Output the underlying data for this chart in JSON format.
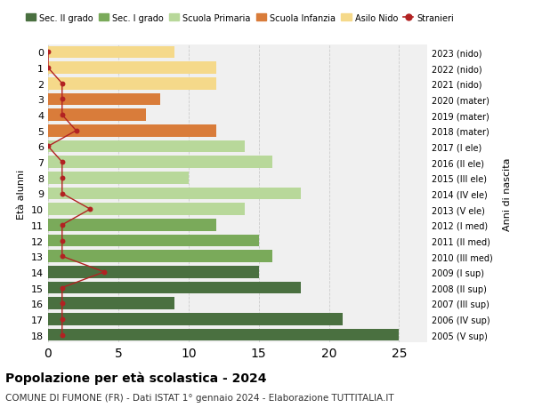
{
  "ages": [
    18,
    17,
    16,
    15,
    14,
    13,
    12,
    11,
    10,
    9,
    8,
    7,
    6,
    5,
    4,
    3,
    2,
    1,
    0
  ],
  "right_labels": [
    "2005 (V sup)",
    "2006 (IV sup)",
    "2007 (III sup)",
    "2008 (II sup)",
    "2009 (I sup)",
    "2010 (III med)",
    "2011 (II med)",
    "2012 (I med)",
    "2013 (V ele)",
    "2014 (IV ele)",
    "2015 (III ele)",
    "2016 (II ele)",
    "2017 (I ele)",
    "2018 (mater)",
    "2019 (mater)",
    "2020 (mater)",
    "2021 (nido)",
    "2022 (nido)",
    "2023 (nido)"
  ],
  "bar_values": [
    25,
    21,
    9,
    18,
    15,
    16,
    15,
    12,
    14,
    18,
    10,
    16,
    14,
    12,
    7,
    8,
    12,
    12,
    9
  ],
  "bar_colors": [
    "#4a7040",
    "#4a7040",
    "#4a7040",
    "#4a7040",
    "#4a7040",
    "#7aaa5a",
    "#7aaa5a",
    "#7aaa5a",
    "#b8d89a",
    "#b8d89a",
    "#b8d89a",
    "#b8d89a",
    "#b8d89a",
    "#d97c3a",
    "#d97c3a",
    "#d97c3a",
    "#f5d98a",
    "#f5d98a",
    "#f5d98a"
  ],
  "stranieri_x": [
    1,
    1,
    1,
    1,
    4,
    1,
    1,
    1,
    3,
    1,
    1,
    1,
    0,
    2,
    1,
    1,
    1,
    0,
    0
  ],
  "stranieri_color": "#b22222",
  "xlim": [
    0,
    27
  ],
  "xticks": [
    0,
    5,
    10,
    15,
    20,
    25
  ],
  "ylabel": "Età alunni",
  "right_ylabel": "Anni di nascita",
  "title": "Popolazione per età scolastica - 2024",
  "subtitle": "COMUNE DI FUMONE (FR) - Dati ISTAT 1° gennaio 2024 - Elaborazione TUTTITALIA.IT",
  "legend_items": [
    {
      "label": "Sec. II grado",
      "color": "#4a7040"
    },
    {
      "label": "Sec. I grado",
      "color": "#7aaa5a"
    },
    {
      "label": "Scuola Primaria",
      "color": "#b8d89a"
    },
    {
      "label": "Scuola Infanzia",
      "color": "#d97c3a"
    },
    {
      "label": "Asilo Nido",
      "color": "#f5d98a"
    },
    {
      "label": "Stranieri",
      "color": "#b22222"
    }
  ],
  "bg_color": "#f0f0f0",
  "bar_height": 0.78
}
